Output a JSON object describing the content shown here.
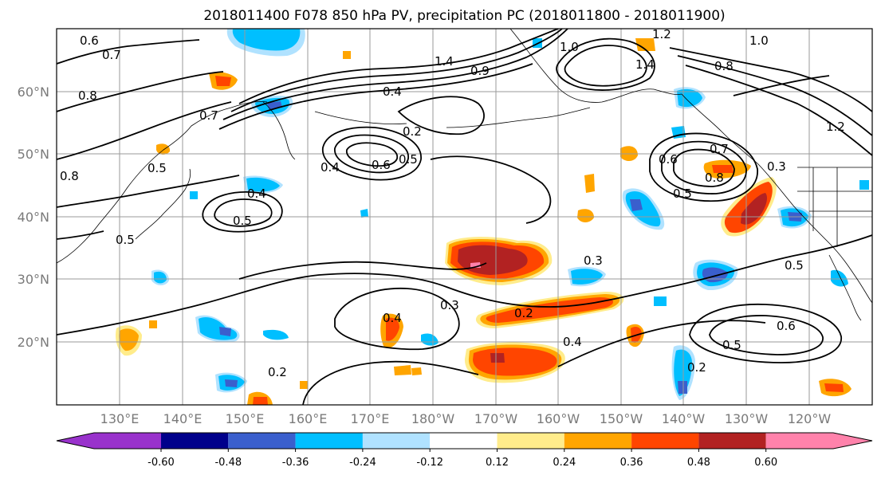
{
  "title": "2018011400 F078 850 hPa PV, precipitation PC (2018011800 - 2018011900)",
  "axes": {
    "lon_labels": [
      "130°E",
      "140°E",
      "150°E",
      "160°E",
      "170°E",
      "180°W",
      "170°W",
      "160°W",
      "150°W",
      "140°W",
      "130°W",
      "120°W"
    ],
    "lat_labels": [
      "60°N",
      "50°N",
      "40°N",
      "30°N",
      "20°N"
    ]
  },
  "colorbar": {
    "colors": [
      "#9932CC",
      "#00008B",
      "#3A5FCD",
      "#00BFFF",
      "#B0E2FF",
      "#FFFFFF",
      "#FFEC8B",
      "#FFA500",
      "#FF4500",
      "#B22222",
      "#FF82AB"
    ],
    "tick_labels": [
      "-0.60",
      "-0.48",
      "-0.36",
      "-0.24",
      "-0.12",
      "0.12",
      "0.24",
      "0.36",
      "0.48",
      "0.60"
    ]
  },
  "contour_labels": [
    {
      "text": "0.6"
    },
    {
      "text": "0.7"
    },
    {
      "text": "0.8"
    },
    {
      "text": "0.7"
    },
    {
      "text": "0.8"
    },
    {
      "text": "0.5"
    },
    {
      "text": "0.4"
    },
    {
      "text": "0.5"
    },
    {
      "text": "0.5"
    },
    {
      "text": "1.4"
    },
    {
      "text": "0.9"
    },
    {
      "text": "0.4"
    },
    {
      "text": "0.2"
    },
    {
      "text": "0.4"
    },
    {
      "text": "0.6"
    },
    {
      "text": "0.5"
    },
    {
      "text": "1.0"
    },
    {
      "text": "1.2"
    },
    {
      "text": "1.4"
    },
    {
      "text": "0.8"
    },
    {
      "text": "1.0"
    },
    {
      "text": "0.6"
    },
    {
      "text": "0.7"
    },
    {
      "text": "0.8"
    },
    {
      "text": "0.5"
    },
    {
      "text": "0.3"
    },
    {
      "text": "0.5"
    },
    {
      "text": "0.3"
    },
    {
      "text": "0.3"
    },
    {
      "text": "0.4"
    },
    {
      "text": "0.2"
    },
    {
      "text": "0.4"
    },
    {
      "text": "0.2"
    },
    {
      "text": "0.6"
    },
    {
      "text": "0.5"
    },
    {
      "text": "0.2"
    },
    {
      "text": "1.2"
    }
  ]
}
